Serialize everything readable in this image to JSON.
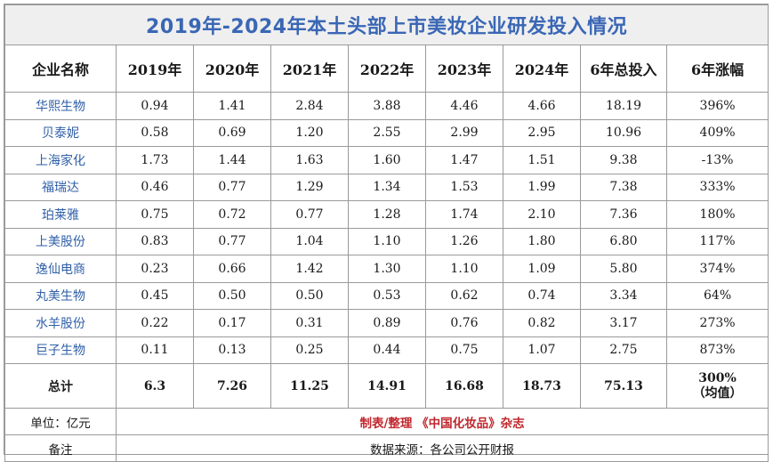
{
  "chart_data": {
    "type": "table",
    "title": "2019年-2024年本土头部上市美妆企业研发投入情况",
    "columns": [
      "企业名称",
      "2019年",
      "2020年",
      "2021年",
      "2022年",
      "2023年",
      "2024年",
      "6年总投入",
      "6年涨幅"
    ],
    "rows": [
      {
        "company": "华熙生物",
        "values": [
          "0.94",
          "1.41",
          "2.84",
          "3.88",
          "4.46",
          "4.66",
          "18.19",
          "396%"
        ]
      },
      {
        "company": "贝泰妮",
        "values": [
          "0.58",
          "0.69",
          "1.20",
          "2.55",
          "2.99",
          "2.95",
          "10.96",
          "409%"
        ]
      },
      {
        "company": "上海家化",
        "values": [
          "1.73",
          "1.44",
          "1.63",
          "1.60",
          "1.47",
          "1.51",
          "9.38",
          "-13%"
        ]
      },
      {
        "company": "福瑞达",
        "values": [
          "0.46",
          "0.77",
          "1.29",
          "1.34",
          "1.53",
          "1.99",
          "7.38",
          "333%"
        ]
      },
      {
        "company": "珀莱雅",
        "values": [
          "0.75",
          "0.72",
          "0.77",
          "1.28",
          "1.74",
          "2.10",
          "7.36",
          "180%"
        ]
      },
      {
        "company": "上美股份",
        "values": [
          "0.83",
          "0.77",
          "1.04",
          "1.10",
          "1.26",
          "1.80",
          "6.80",
          "117%"
        ]
      },
      {
        "company": "逸仙电商",
        "values": [
          "0.23",
          "0.66",
          "1.42",
          "1.30",
          "1.10",
          "1.09",
          "5.80",
          "374%"
        ]
      },
      {
        "company": "丸美生物",
        "values": [
          "0.45",
          "0.50",
          "0.50",
          "0.53",
          "0.62",
          "0.74",
          "3.34",
          "64%"
        ]
      },
      {
        "company": "水羊股份",
        "values": [
          "0.22",
          "0.17",
          "0.31",
          "0.89",
          "0.76",
          "0.82",
          "3.17",
          "273%"
        ]
      },
      {
        "company": "巨子生物",
        "values": [
          "0.11",
          "0.13",
          "0.25",
          "0.44",
          "0.75",
          "1.07",
          "2.75",
          "873%"
        ]
      }
    ],
    "total": {
      "label": "总计",
      "values": [
        "6.3",
        "7.26",
        "11.25",
        "14.91",
        "16.68",
        "18.73",
        "75.13"
      ],
      "growth": "300%",
      "growth_note": "（均值）"
    }
  },
  "footer": {
    "unit": "单位：亿元",
    "credit": "制表/整理 《中国化妆品》杂志",
    "note_label": "备注",
    "note": "数据来源：各公司公开财报"
  },
  "colors": {
    "title": "#3a67b5",
    "company": "#2f5fa7",
    "credit": "#c0272d",
    "title_bg": "#efefef",
    "border": "#9a9a9a"
  }
}
